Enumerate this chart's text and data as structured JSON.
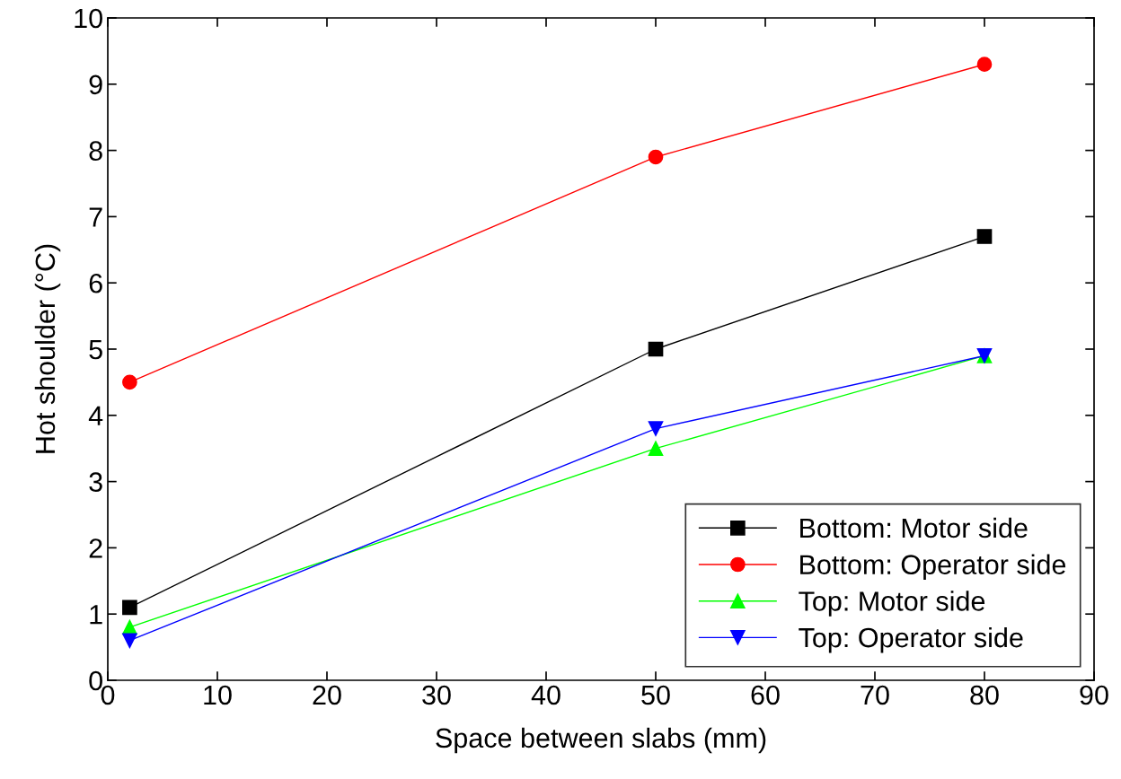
{
  "chart_data": {
    "type": "line",
    "xlabel": "Space between slabs (mm)",
    "ylabel": "Hot shoulder (°C)",
    "x": [
      2,
      50,
      80
    ],
    "series": [
      {
        "name": "Bottom: Motor side",
        "color": "#000000",
        "marker": "square",
        "values": [
          1.1,
          5.0,
          6.7
        ]
      },
      {
        "name": "Bottom: Operator side",
        "color": "#ff0000",
        "marker": "circle",
        "values": [
          4.5,
          7.9,
          9.3
        ]
      },
      {
        "name": "Top: Motor side",
        "color": "#00ff00",
        "marker": "triangle",
        "values": [
          0.8,
          3.5,
          4.9
        ]
      },
      {
        "name": "Top: Operator side",
        "color": "#0000ff",
        "marker": "triangle_down",
        "values": [
          0.6,
          3.8,
          4.9
        ]
      }
    ],
    "xlim": [
      0,
      90
    ],
    "xticks": [
      0,
      10,
      20,
      30,
      40,
      50,
      60,
      70,
      80,
      90
    ],
    "ylim": [
      0,
      10
    ],
    "yticks": [
      0,
      1,
      2,
      3,
      4,
      5,
      6,
      7,
      8,
      9,
      10
    ],
    "grid": false,
    "legend": "bottom right",
    "line_style": "solid"
  }
}
